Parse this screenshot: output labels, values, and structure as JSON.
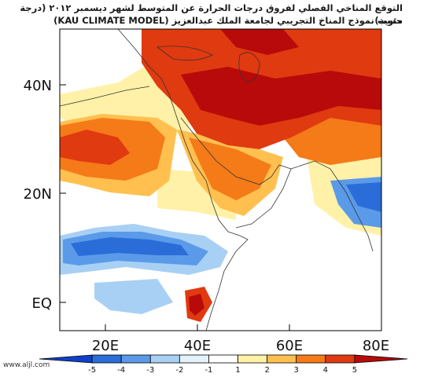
{
  "header": {
    "title": "التوقع المناخي الفصلي لفروق درجات الحرارة عن المتوسط لشهر ديسمبر ٢٠١٢ (درجة مئوية)",
    "subtitle": "حسب نموذج المناخ التجريبي لجامعة الملك عبدالعزيز (KAU CLIMATE MODEL)"
  },
  "map": {
    "lat_labels": [
      "40N",
      "20N",
      "EQ"
    ],
    "lon_labels": [
      "20E",
      "40E",
      "60E",
      "80E"
    ]
  },
  "colorbar": {
    "ticks": [
      "-5",
      "-4",
      "-3",
      "-2",
      "-1",
      "1",
      "2",
      "3",
      "4",
      "5"
    ],
    "colors": [
      "#1040c8",
      "#2a6cd8",
      "#5a9ae8",
      "#a8d0f4",
      "#e4f2fc",
      "#ffffff",
      "#fff1a8",
      "#ffc050",
      "#f57a18",
      "#e03a10",
      "#b80a0a"
    ]
  },
  "watermark": "www.aljl.com"
}
